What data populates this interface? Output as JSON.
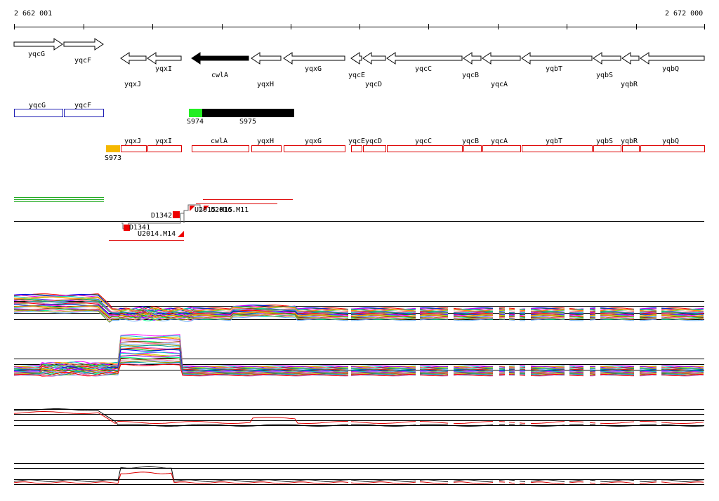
{
  "ruler": {
    "start_label": "2 662 001",
    "end_label": "2 672 000"
  },
  "colors": {
    "gene_fill": "#ffffff",
    "gene_selected_fill": "#000000",
    "box_blue": "#1f1fb4",
    "box_red": "#dd0000",
    "feature_green": "#22ee22",
    "feature_orange": "#f5b800",
    "marker_red": "#ee0000",
    "track_green": "#22aa22"
  },
  "genes": [
    {
      "name": "yqcG",
      "dir": "right",
      "selected": false
    },
    {
      "name": "yqcF",
      "dir": "right",
      "selected": false
    },
    {
      "name": "yqxJ",
      "dir": "left",
      "selected": false
    },
    {
      "name": "yqxI",
      "dir": "left",
      "selected": false
    },
    {
      "name": "cwlA",
      "dir": "left",
      "selected": true
    },
    {
      "name": "yqxH",
      "dir": "left",
      "selected": false
    },
    {
      "name": "yqxG",
      "dir": "left",
      "selected": false
    },
    {
      "name": "yqcE",
      "dir": "left",
      "selected": false
    },
    {
      "name": "yqcD",
      "dir": "left",
      "selected": false
    },
    {
      "name": "yqcC",
      "dir": "left",
      "selected": false
    },
    {
      "name": "yqcB",
      "dir": "left",
      "selected": false
    },
    {
      "name": "yqcA",
      "dir": "left",
      "selected": false
    },
    {
      "name": "yqbT",
      "dir": "left",
      "selected": false
    },
    {
      "name": "yqbS",
      "dir": "left",
      "selected": false
    },
    {
      "name": "yqbR",
      "dir": "left",
      "selected": false
    },
    {
      "name": "yqbQ",
      "dir": "left",
      "selected": false
    }
  ],
  "blue_boxes": [
    {
      "label": "yqcG"
    },
    {
      "label": "yqcF"
    }
  ],
  "red_boxes": [
    {
      "label": "yqxJ"
    },
    {
      "label": "yqxI"
    },
    {
      "label": "cwlA"
    },
    {
      "label": "yqxH"
    },
    {
      "label": "yqxG"
    },
    {
      "label": "yqcE"
    },
    {
      "label": "yqcD"
    },
    {
      "label": "yqcC"
    },
    {
      "label": "yqcB"
    },
    {
      "label": "yqcA"
    },
    {
      "label": "yqbT"
    },
    {
      "label": "yqbS"
    },
    {
      "label": "yqbR"
    },
    {
      "label": "yqbQ"
    }
  ],
  "features": {
    "s974": "S974",
    "s975": "S975",
    "s973": "S973"
  },
  "markers": {
    "d1342": "D1342",
    "d1341": "D1341",
    "u2015": "U2015.M15",
    "u2016": "U2016.M11",
    "u2014": "U2014.M14"
  }
}
